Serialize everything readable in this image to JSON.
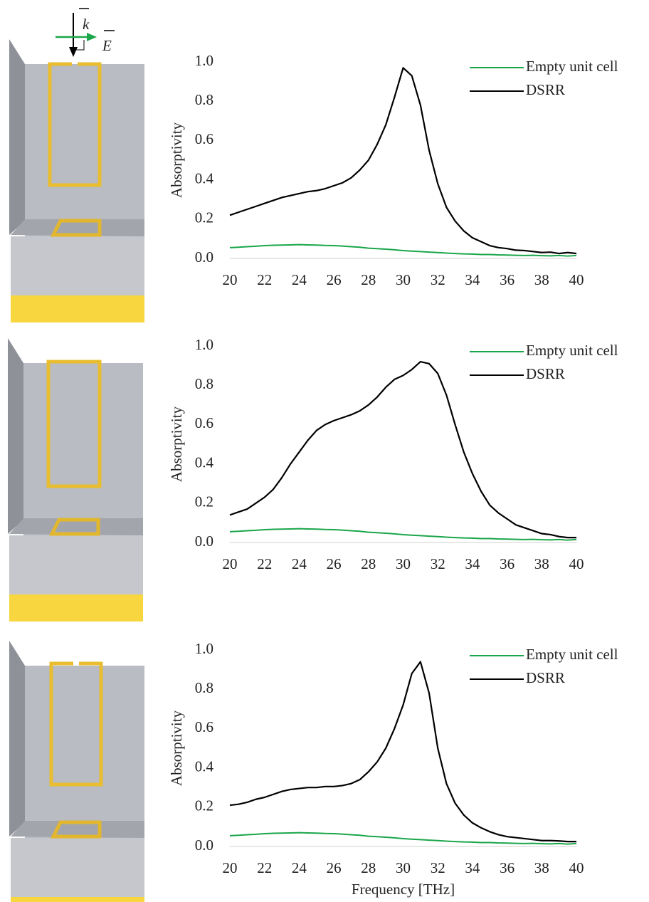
{
  "illustration": {
    "k_label": "k",
    "e_label": "E"
  },
  "chart_data": [
    {
      "type": "line",
      "y_label": "Absorptivity",
      "x": [
        20,
        20.5,
        21,
        21.5,
        22,
        22.5,
        23,
        23.5,
        24,
        24.5,
        25,
        25.5,
        26,
        26.5,
        27,
        27.5,
        28,
        28.5,
        29,
        29.5,
        30,
        30.5,
        31,
        31.5,
        32,
        32.5,
        33,
        33.5,
        34,
        34.5,
        35,
        35.5,
        36,
        36.5,
        37,
        37.5,
        38,
        38.5,
        39,
        39.5,
        40
      ],
      "series": [
        {
          "name": "Empty unit cell",
          "color": "#1aa64a",
          "values": [
            0.055,
            0.057,
            0.06,
            0.062,
            0.065,
            0.067,
            0.068,
            0.069,
            0.07,
            0.069,
            0.068,
            0.066,
            0.065,
            0.063,
            0.06,
            0.057,
            0.052,
            0.05,
            0.047,
            0.044,
            0.04,
            0.037,
            0.035,
            0.032,
            0.03,
            0.027,
            0.025,
            0.023,
            0.022,
            0.02,
            0.02,
            0.018,
            0.017,
            0.016,
            0.015,
            0.016,
            0.014,
            0.013,
            0.015,
            0.012,
            0.015
          ]
        },
        {
          "name": "DSRR",
          "color": "#000000",
          "values": [
            0.22,
            0.235,
            0.25,
            0.265,
            0.28,
            0.295,
            0.31,
            0.32,
            0.33,
            0.34,
            0.345,
            0.355,
            0.37,
            0.385,
            0.41,
            0.45,
            0.5,
            0.58,
            0.68,
            0.82,
            0.97,
            0.93,
            0.78,
            0.55,
            0.38,
            0.26,
            0.19,
            0.14,
            0.105,
            0.085,
            0.065,
            0.055,
            0.05,
            0.042,
            0.04,
            0.035,
            0.03,
            0.032,
            0.025,
            0.03,
            0.025
          ]
        }
      ],
      "xlim": [
        20,
        40
      ],
      "xticks": [
        20,
        22,
        24,
        26,
        28,
        30,
        32,
        34,
        36,
        38,
        40
      ],
      "ylim": [
        0,
        1
      ],
      "yticks": [
        {
          "value": 0,
          "label": "0.0"
        },
        0.2,
        0.4,
        0.6,
        0.8,
        {
          "value": 1,
          "label": "1.0"
        }
      ]
    },
    {
      "type": "line",
      "y_label": "Absorptivity",
      "x": [
        20,
        20.5,
        21,
        21.5,
        22,
        22.5,
        23,
        23.5,
        24,
        24.5,
        25,
        25.5,
        26,
        26.5,
        27,
        27.5,
        28,
        28.5,
        29,
        29.5,
        30,
        30.5,
        31,
        31.5,
        32,
        32.5,
        33,
        33.5,
        34,
        34.5,
        35,
        35.5,
        36,
        36.5,
        37,
        37.5,
        38,
        38.5,
        39,
        39.5,
        40
      ],
      "series": [
        {
          "name": "Empty unit cell",
          "color": "#1aa64a",
          "values": [
            0.055,
            0.057,
            0.06,
            0.062,
            0.065,
            0.067,
            0.068,
            0.069,
            0.07,
            0.069,
            0.068,
            0.066,
            0.065,
            0.063,
            0.06,
            0.057,
            0.052,
            0.05,
            0.047,
            0.044,
            0.04,
            0.037,
            0.035,
            0.032,
            0.03,
            0.027,
            0.025,
            0.023,
            0.022,
            0.02,
            0.02,
            0.018,
            0.017,
            0.016,
            0.015,
            0.016,
            0.014,
            0.013,
            0.015,
            0.012,
            0.015
          ]
        },
        {
          "name": "DSRR",
          "color": "#000000",
          "values": [
            0.14,
            0.155,
            0.17,
            0.2,
            0.23,
            0.27,
            0.33,
            0.4,
            0.46,
            0.52,
            0.57,
            0.6,
            0.62,
            0.635,
            0.65,
            0.67,
            0.7,
            0.74,
            0.79,
            0.83,
            0.85,
            0.88,
            0.92,
            0.91,
            0.86,
            0.75,
            0.6,
            0.46,
            0.35,
            0.26,
            0.19,
            0.15,
            0.12,
            0.09,
            0.075,
            0.06,
            0.045,
            0.04,
            0.03,
            0.025,
            0.025
          ]
        }
      ],
      "xlim": [
        20,
        40
      ],
      "xticks": [
        20,
        22,
        24,
        26,
        28,
        30,
        32,
        34,
        36,
        38,
        40
      ],
      "ylim": [
        0,
        1
      ],
      "yticks": [
        {
          "value": 0,
          "label": "0.0"
        },
        0.2,
        0.4,
        0.6,
        0.8,
        {
          "value": 1,
          "label": "1.0"
        }
      ]
    },
    {
      "type": "line",
      "y_label": "Absorptivity",
      "x_label": "Frequency [THz]",
      "x": [
        20,
        20.5,
        21,
        21.5,
        22,
        22.5,
        23,
        23.5,
        24,
        24.5,
        25,
        25.5,
        26,
        26.5,
        27,
        27.5,
        28,
        28.5,
        29,
        29.5,
        30,
        30.5,
        31,
        31.5,
        32,
        32.5,
        33,
        33.5,
        34,
        34.5,
        35,
        35.5,
        36,
        36.5,
        37,
        37.5,
        38,
        38.5,
        39,
        39.5,
        40
      ],
      "series": [
        {
          "name": "Empty unit cell",
          "color": "#1aa64a",
          "values": [
            0.055,
            0.057,
            0.06,
            0.062,
            0.065,
            0.067,
            0.068,
            0.069,
            0.07,
            0.069,
            0.068,
            0.066,
            0.065,
            0.063,
            0.06,
            0.057,
            0.052,
            0.05,
            0.047,
            0.044,
            0.04,
            0.037,
            0.035,
            0.032,
            0.03,
            0.027,
            0.025,
            0.023,
            0.022,
            0.02,
            0.02,
            0.018,
            0.017,
            0.016,
            0.015,
            0.016,
            0.014,
            0.013,
            0.015,
            0.012,
            0.015
          ]
        },
        {
          "name": "DSRR",
          "color": "#000000",
          "values": [
            0.21,
            0.215,
            0.225,
            0.24,
            0.25,
            0.265,
            0.28,
            0.29,
            0.295,
            0.3,
            0.3,
            0.305,
            0.305,
            0.31,
            0.32,
            0.34,
            0.38,
            0.43,
            0.5,
            0.6,
            0.72,
            0.88,
            0.94,
            0.78,
            0.5,
            0.32,
            0.22,
            0.16,
            0.12,
            0.095,
            0.075,
            0.06,
            0.05,
            0.045,
            0.04,
            0.035,
            0.03,
            0.03,
            0.028,
            0.025,
            0.025
          ]
        }
      ],
      "xlim": [
        20,
        40
      ],
      "xticks": [
        20,
        22,
        24,
        26,
        28,
        30,
        32,
        34,
        36,
        38,
        40
      ],
      "ylim": [
        0,
        1
      ],
      "yticks": [
        {
          "value": 0,
          "label": "0.0"
        },
        0.2,
        0.4,
        0.6,
        0.8,
        {
          "value": 1,
          "label": "1.0"
        }
      ]
    }
  ]
}
